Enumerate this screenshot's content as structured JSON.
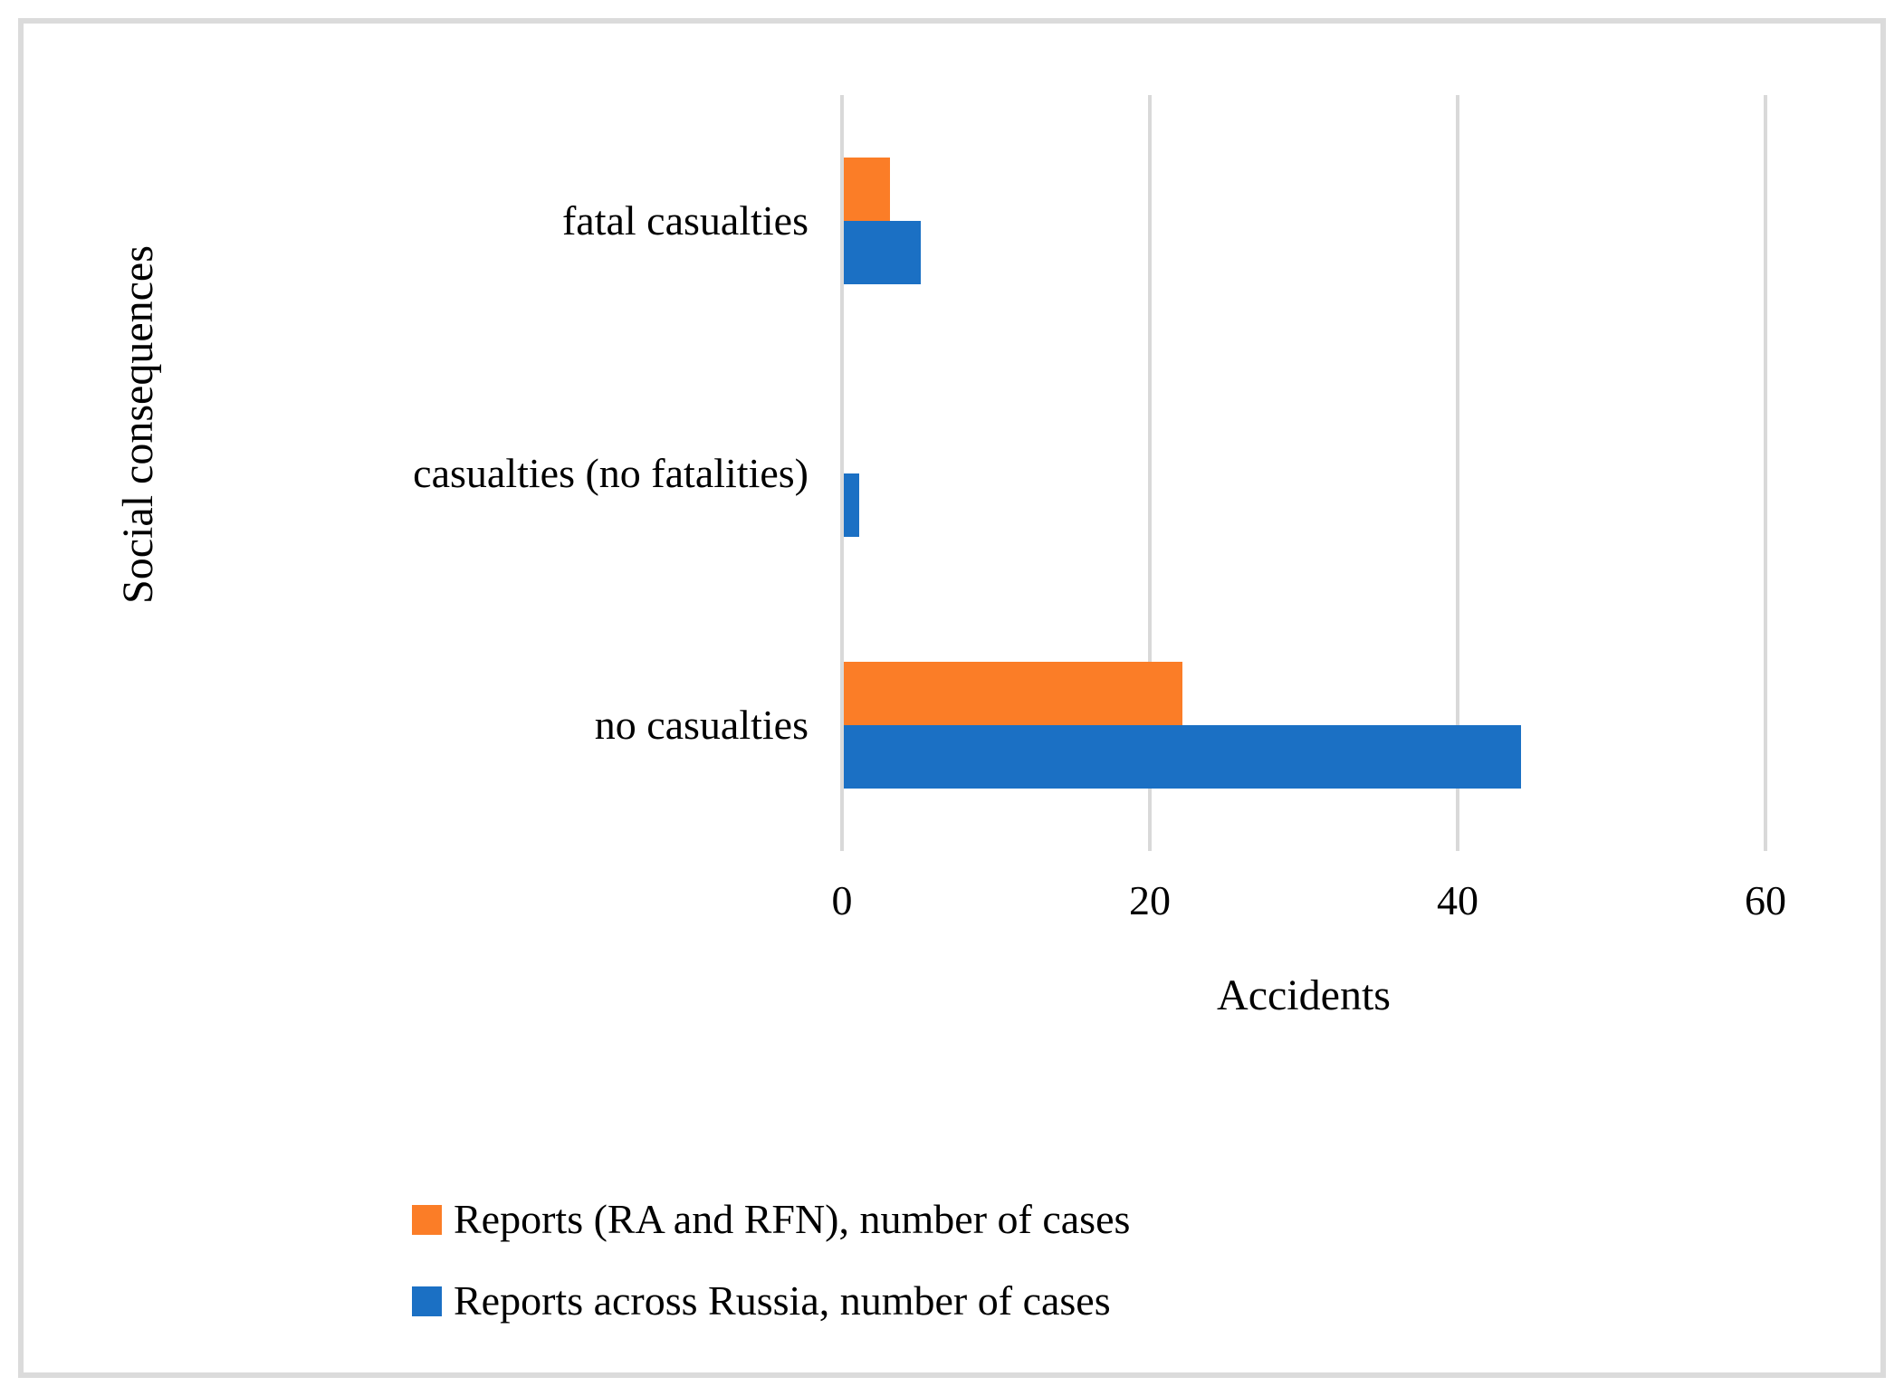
{
  "chart_data": {
    "type": "bar",
    "orientation": "horizontal",
    "title": "",
    "xlabel": "Accidents",
    "ylabel": "Social consequences",
    "categories": [
      "fatal casualties",
      "casualties (no fatalities)",
      "no casualties"
    ],
    "series": [
      {
        "name": "Reports (RA and RFN), number of cases",
        "color": "#FB7D27",
        "values": [
          3,
          0,
          22
        ]
      },
      {
        "name": "Reports across Russia, number of cases",
        "color": "#1B70C4",
        "values": [
          5,
          1,
          44
        ]
      }
    ],
    "xlim": [
      0,
      60
    ],
    "xticks": [
      0,
      20,
      40,
      60
    ],
    "grid": "vertical-gridlines",
    "gridline_color": "#D9D9D9",
    "frame_border_color": "#DBDBDB",
    "legend_position": "bottom-left"
  }
}
